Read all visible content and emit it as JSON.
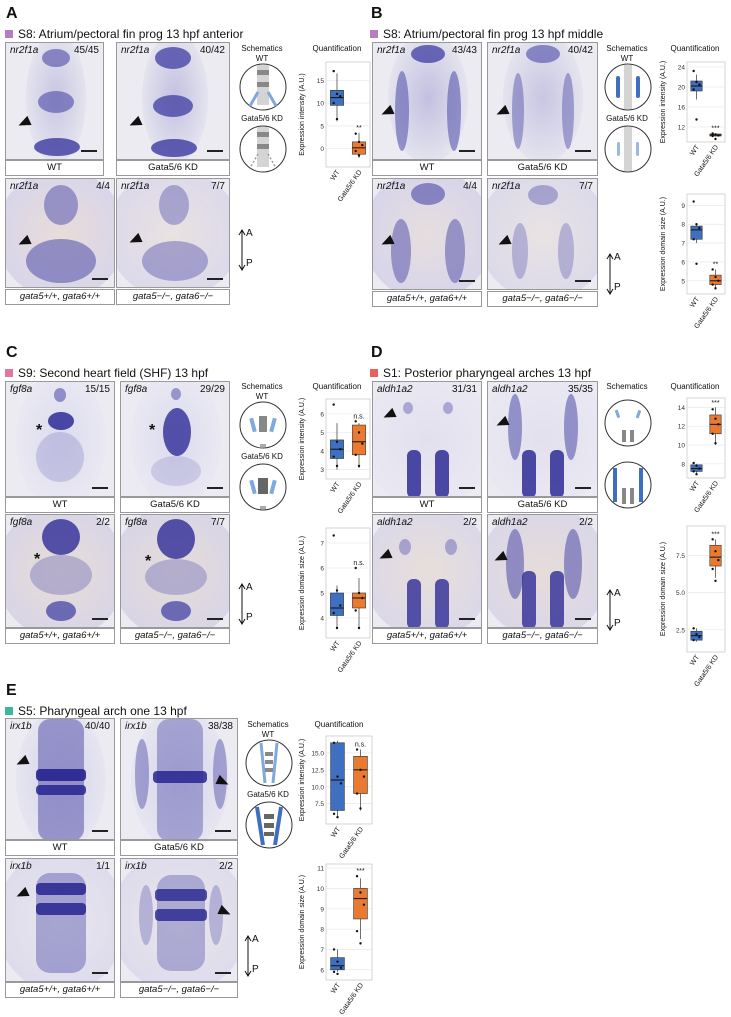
{
  "panels": [
    {
      "letter": "A",
      "title": "S8: Atrium/pectoral fin prog 13 hpf anterior",
      "color": "#b57ec0",
      "images": [
        {
          "gene": "nr2f1a",
          "count": "45/45",
          "label": "WT"
        },
        {
          "gene": "nr2f1a",
          "count": "40/42",
          "label": "Gata5/6 KD"
        },
        {
          "gene": "nr2f1a",
          "count": "4/4",
          "label": "gata5+/+, gata6+/+"
        },
        {
          "gene": "nr2f1a",
          "count": "7/7",
          "label": "gata5−/−, gata6−/−"
        }
      ],
      "schematics_title": "Schematics",
      "schematic_labels": [
        "WT",
        "Gata5/6 KD"
      ],
      "quant_title": "Quantification",
      "axis_a": "A",
      "axis_p": "P"
    },
    {
      "letter": "B",
      "title": "S8: Atrium/pectoral fin prog 13 hpf middle",
      "color": "#b57ec0",
      "images": [
        {
          "gene": "nr2f1a",
          "count": "43/43",
          "label": "WT"
        },
        {
          "gene": "nr2f1a",
          "count": "40/42",
          "label": "Gata5/6 KD"
        },
        {
          "gene": "nr2f1a",
          "count": "4/4",
          "label": "gata5+/+, gata6+/+"
        },
        {
          "gene": "nr2f1a",
          "count": "7/7",
          "label": "gata5−/−, gata6−/−"
        }
      ],
      "schematics_title": "Schematics",
      "schematic_labels": [
        "WT",
        "Gata5/6 KD"
      ],
      "quant_title": "Quantification",
      "axis_a": "A",
      "axis_p": "P"
    },
    {
      "letter": "C",
      "title": "S9: Second heart field (SHF) 13 hpf",
      "color": "#e0789e",
      "images": [
        {
          "gene": "fgf8a",
          "count": "15/15",
          "label": "WT"
        },
        {
          "gene": "fgf8a",
          "count": "29/29",
          "label": "Gata5/6 KD"
        },
        {
          "gene": "fgf8a",
          "count": "2/2",
          "label": "gata5+/+, gata6+/+"
        },
        {
          "gene": "fgf8a",
          "count": "7/7",
          "label": "gata5−/−, gata6−/−"
        }
      ],
      "schematics_title": "Schematics",
      "schematic_labels": [
        "WT",
        "Gata5/6 KD"
      ],
      "quant_title": "Quantification",
      "axis_a": "A",
      "axis_p": "P"
    },
    {
      "letter": "D",
      "title": "S1: Posterior pharyngeal arches 13 hpf",
      "color": "#e8625a",
      "images": [
        {
          "gene": "aldh1a2",
          "count": "31/31",
          "label": "WT"
        },
        {
          "gene": "aldh1a2",
          "count": "35/35",
          "label": "Gata5/6 KD"
        },
        {
          "gene": "aldh1a2",
          "count": "2/2",
          "label": "gata5+/+, gata6+/+"
        },
        {
          "gene": "aldh1a2",
          "count": "2/2",
          "label": "gata5−/−, gata6−/−"
        }
      ],
      "schematics_title": "Schematics",
      "schematic_labels": [
        "",
        ""
      ],
      "quant_title": "Quantification",
      "axis_a": "A",
      "axis_p": "P"
    },
    {
      "letter": "E",
      "title": "S5: Pharyngeal arch one 13 hpf",
      "color": "#3ab89b",
      "images": [
        {
          "gene": "irx1b",
          "count": "40/40",
          "label": "WT"
        },
        {
          "gene": "irx1b",
          "count": "38/38",
          "label": "Gata5/6 KD"
        },
        {
          "gene": "irx1b",
          "count": "1/1",
          "label": "gata5+/+, gata6+/+"
        },
        {
          "gene": "irx1b",
          "count": "2/2",
          "label": "gata5−/−, gata6−/−"
        }
      ],
      "schematics_title": "Schematics",
      "schematic_labels": [
        "WT",
        "Gata5/6 KD"
      ],
      "quant_title": "Quantification",
      "axis_a": "A",
      "axis_p": "P"
    }
  ],
  "chart_data": [
    {
      "id": "A-intensity",
      "type": "box",
      "categories": [
        "WT",
        "Gata5/6 KD"
      ],
      "ylabel": "Expression intensity (A.U.)",
      "yticks": [
        "0",
        "5",
        "10",
        "15"
      ],
      "ylim": [
        -4,
        19
      ],
      "significance": "**",
      "boxes": [
        {
          "q1": 9.5,
          "median": 11.2,
          "q3": 12.8,
          "lo": 6.0,
          "hi": 16.5
        },
        {
          "q1": -1.2,
          "median": 0.2,
          "q3": 1.5,
          "lo": -2.0,
          "hi": 3.5
        }
      ],
      "points": [
        [
          17,
          12,
          11.5,
          10,
          6.5
        ],
        [
          3.3,
          1.5,
          0.8,
          -0.5,
          -1.5
        ]
      ]
    },
    {
      "id": "B-intensity",
      "type": "box",
      "categories": [
        "WT",
        "Gata5/6 KD"
      ],
      "ylabel": "Expression intensity (A.U.)",
      "yticks": [
        "12",
        "16",
        "20",
        "24"
      ],
      "ylim": [
        9,
        25
      ],
      "significance": "***",
      "boxes": [
        {
          "q1": 19.2,
          "median": 20.2,
          "q3": 21.2,
          "lo": 17.5,
          "hi": 22.5
        },
        {
          "q1": 10.2,
          "median": 10.4,
          "q3": 10.6,
          "lo": 10.1,
          "hi": 10.7
        }
      ],
      "points": [
        [
          23.2,
          21,
          20.5,
          19.5,
          13.5
        ],
        [
          10.7,
          10.5,
          10.3,
          10.2,
          9.6
        ]
      ]
    },
    {
      "id": "B-size",
      "type": "box",
      "categories": [
        "WT",
        "Gata5/6 KD"
      ],
      "ylabel": "Expression domain size (A.U.)",
      "yticks": [
        "5",
        "6",
        "7",
        "8",
        "9"
      ],
      "ylim": [
        4.3,
        9.6
      ],
      "significance": "**",
      "boxes": [
        {
          "q1": 7.2,
          "median": 7.7,
          "q3": 7.9,
          "lo": 7.0,
          "hi": 8.0
        },
        {
          "q1": 4.8,
          "median": 5.0,
          "q3": 5.3,
          "lo": 4.6,
          "hi": 5.6
        }
      ],
      "points": [
        [
          9.2,
          8.0,
          7.8,
          7.2,
          5.9
        ],
        [
          5.6,
          5.2,
          5.0,
          4.8,
          4.6
        ]
      ]
    },
    {
      "id": "C-intensity",
      "type": "box",
      "categories": [
        "WT",
        "Gata5/6 KD"
      ],
      "ylabel": "Expression intensity (A.U.)",
      "yticks": [
        "3",
        "4",
        "5",
        "6"
      ],
      "ylim": [
        2.5,
        6.8
      ],
      "significance": "n.s.",
      "boxes": [
        {
          "q1": 3.6,
          "median": 4.1,
          "q3": 4.6,
          "lo": 3.0,
          "hi": 5.5
        },
        {
          "q1": 3.8,
          "median": 4.5,
          "q3": 5.4,
          "lo": 3.1,
          "hi": 5.5
        }
      ],
      "points": [
        [
          6.5,
          4.5,
          4.1,
          3.7,
          3.2
        ],
        [
          5.6,
          5.0,
          4.4,
          3.8,
          3.2
        ]
      ]
    },
    {
      "id": "C-size",
      "type": "box",
      "categories": [
        "WT",
        "Gata5/6 KD"
      ],
      "ylabel": "Expression domain size (A.U.)",
      "yticks": [
        "4",
        "5",
        "6",
        "7"
      ],
      "ylim": [
        3.2,
        7.6
      ],
      "significance": "n.s.",
      "boxes": [
        {
          "q1": 4.1,
          "median": 4.4,
          "q3": 5.0,
          "lo": 3.6,
          "hi": 5.3
        },
        {
          "q1": 4.4,
          "median": 4.8,
          "q3": 5.0,
          "lo": 3.6,
          "hi": 5.6
        }
      ],
      "points": [
        [
          7.3,
          5.1,
          4.5,
          4.2,
          3.6
        ],
        [
          6.0,
          5.0,
          4.8,
          4.3,
          3.6
        ]
      ]
    },
    {
      "id": "D-intensity",
      "type": "box",
      "categories": [
        "WT",
        "Gata5/6 KD"
      ],
      "ylabel": "",
      "yticks": [
        "8",
        "10",
        "12",
        "14"
      ],
      "ylim": [
        6.5,
        15
      ],
      "significance": "***",
      "boxes": [
        {
          "q1": 7.2,
          "median": 7.5,
          "q3": 7.9,
          "lo": 7.0,
          "hi": 8.0
        },
        {
          "q1": 11.2,
          "median": 12.2,
          "q3": 13.2,
          "lo": 10.0,
          "hi": 14.0
        }
      ],
      "points": [
        [
          8.1,
          7.8,
          7.5,
          7.2,
          6.9
        ],
        [
          13.8,
          12.8,
          12.2,
          11.2,
          10.2
        ]
      ]
    },
    {
      "id": "D-size",
      "type": "box",
      "categories": [
        "WT",
        "Gata5/6 KD"
      ],
      "ylabel": "Expression domain size (A.U.)",
      "yticks": [
        "2.5",
        "5.0",
        "7.5"
      ],
      "ylim": [
        1.0,
        9.5
      ],
      "significance": "***",
      "boxes": [
        {
          "q1": 1.8,
          "median": 2.1,
          "q3": 2.4,
          "lo": 1.7,
          "hi": 2.6
        },
        {
          "q1": 6.8,
          "median": 7.4,
          "q3": 8.2,
          "lo": 6.0,
          "hi": 8.6
        }
      ],
      "points": [
        [
          2.6,
          2.2,
          2.0,
          1.8
        ],
        [
          8.6,
          7.8,
          7.2,
          6.6,
          5.8
        ]
      ]
    },
    {
      "id": "E-intensity",
      "type": "box",
      "categories": [
        "WT",
        "Gata5/6 KD"
      ],
      "ylabel": "Expression intensity (A.U.)",
      "yticks": [
        "7.5",
        "10.0",
        "12.5",
        "15.0"
      ],
      "ylim": [
        4.5,
        17.5
      ],
      "significance": "n.s.",
      "boxes": [
        {
          "q1": 6.5,
          "median": 11.0,
          "q3": 16.5,
          "lo": 5.5,
          "hi": 16.8
        },
        {
          "q1": 9.0,
          "median": 12.5,
          "q3": 14.5,
          "lo": 6.5,
          "hi": 15.5
        }
      ],
      "points": [
        [
          16.5,
          11.5,
          10.5,
          6.0,
          5.5
        ],
        [
          15.5,
          12.5,
          11.5,
          9.0,
          6.8
        ]
      ]
    },
    {
      "id": "E-size",
      "type": "box",
      "categories": [
        "WT",
        "Gata5/6 KD"
      ],
      "ylabel": "Expression domain size (A.U.)",
      "yticks": [
        "6",
        "7",
        "8",
        "9",
        "10",
        "11"
      ],
      "ylim": [
        5.5,
        11.2
      ],
      "significance": "***",
      "boxes": [
        {
          "q1": 6.0,
          "median": 6.2,
          "q3": 6.6,
          "lo": 5.9,
          "hi": 7.0
        },
        {
          "q1": 8.5,
          "median": 9.5,
          "q3": 10.0,
          "lo": 7.5,
          "hi": 10.5
        }
      ],
      "points": [
        [
          7.0,
          6.4,
          6.1,
          5.9,
          5.8
        ],
        [
          10.6,
          9.8,
          9.2,
          7.9,
          7.3
        ]
      ]
    }
  ],
  "colors": {
    "wt": "#3e6fc0",
    "kd": "#ea7a30",
    "stain": "#3b3aa0"
  }
}
